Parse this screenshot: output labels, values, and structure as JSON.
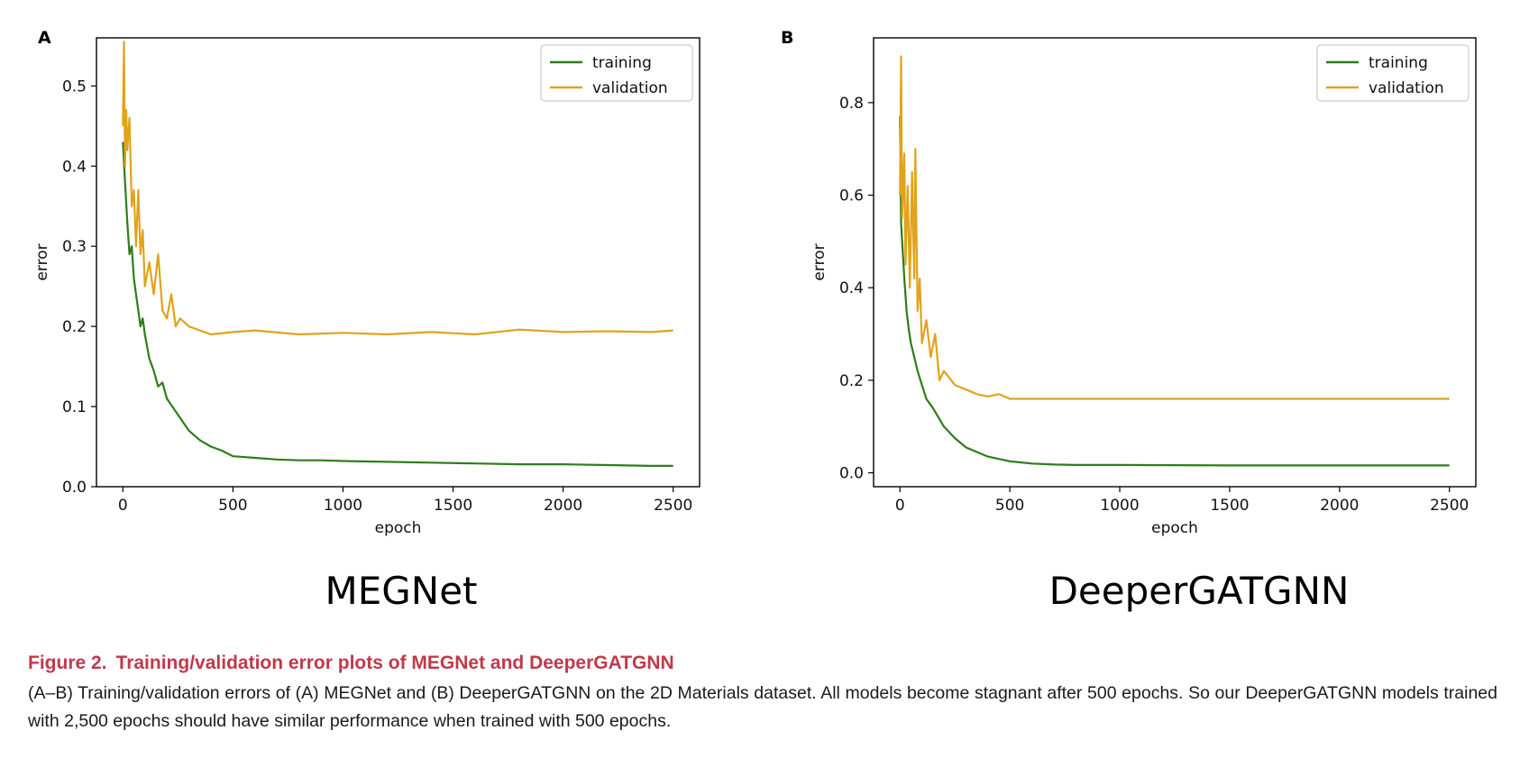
{
  "caption": {
    "figure_label": "Figure 2.",
    "title": "Training/validation error plots of MEGNet and DeeperGATGNN",
    "body": "(A–B) Training/validation errors of (A) MEGNet and (B) DeeperGATGNN on the 2D Materials dataset. All models become stagnant after 500 epochs. So our DeeperGATGNN models trained with 2,500 epochs should have similar performance when trained with 500 epochs."
  },
  "colors": {
    "training": "#2e7d1a",
    "validation": "#e0a31b"
  },
  "chart_data": [
    {
      "type": "line",
      "panel_label": "A",
      "model_name": "MEGNet",
      "xlabel": "epoch",
      "ylabel": "error",
      "xlim": [
        -120,
        2620
      ],
      "ylim": [
        0,
        0.56
      ],
      "xticks": [
        0,
        500,
        1000,
        1500,
        2000,
        2500
      ],
      "yticks": [
        0.0,
        0.1,
        0.2,
        0.3,
        0.4,
        0.5
      ],
      "grid": false,
      "legend": "top-right",
      "series": [
        {
          "name": "training",
          "color": "#2e7d1a",
          "x": [
            0,
            10,
            20,
            30,
            40,
            50,
            60,
            70,
            80,
            90,
            100,
            120,
            140,
            160,
            180,
            200,
            250,
            300,
            350,
            400,
            450,
            500,
            600,
            700,
            800,
            900,
            1000,
            1200,
            1400,
            1600,
            1800,
            2000,
            2200,
            2400,
            2500
          ],
          "y": [
            0.43,
            0.38,
            0.33,
            0.29,
            0.3,
            0.26,
            0.24,
            0.22,
            0.2,
            0.21,
            0.19,
            0.16,
            0.145,
            0.125,
            0.13,
            0.11,
            0.09,
            0.07,
            0.058,
            0.05,
            0.045,
            0.038,
            0.036,
            0.034,
            0.033,
            0.033,
            0.032,
            0.031,
            0.03,
            0.029,
            0.028,
            0.028,
            0.027,
            0.026,
            0.026
          ]
        },
        {
          "name": "validation",
          "color": "#e0a31b",
          "x": [
            0,
            5,
            10,
            15,
            20,
            30,
            40,
            50,
            60,
            70,
            80,
            90,
            100,
            120,
            140,
            160,
            180,
            200,
            220,
            240,
            260,
            300,
            350,
            400,
            500,
            600,
            800,
            1000,
            1200,
            1400,
            1600,
            1800,
            2000,
            2200,
            2400,
            2500
          ],
          "y": [
            0.45,
            0.555,
            0.4,
            0.47,
            0.42,
            0.46,
            0.35,
            0.37,
            0.3,
            0.37,
            0.29,
            0.32,
            0.25,
            0.28,
            0.24,
            0.29,
            0.22,
            0.21,
            0.24,
            0.2,
            0.21,
            0.2,
            0.195,
            0.19,
            0.193,
            0.195,
            0.19,
            0.192,
            0.19,
            0.193,
            0.19,
            0.196,
            0.193,
            0.194,
            0.193,
            0.195
          ]
        }
      ]
    },
    {
      "type": "line",
      "panel_label": "B",
      "model_name": "DeeperGATGNN",
      "xlabel": "epoch",
      "ylabel": "error",
      "xlim": [
        -120,
        2620
      ],
      "ylim": [
        -0.03,
        0.94
      ],
      "xticks": [
        0,
        500,
        1000,
        1500,
        2000,
        2500
      ],
      "yticks": [
        0.0,
        0.2,
        0.4,
        0.6,
        0.8
      ],
      "grid": false,
      "legend": "top-right",
      "series": [
        {
          "name": "training",
          "color": "#2e7d1a",
          "x": [
            0,
            5,
            10,
            20,
            30,
            40,
            50,
            60,
            80,
            100,
            120,
            150,
            200,
            250,
            300,
            350,
            400,
            450,
            500,
            600,
            700,
            800,
            1000,
            1500,
            2000,
            2500
          ],
          "y": [
            0.77,
            0.54,
            0.5,
            0.42,
            0.35,
            0.31,
            0.28,
            0.26,
            0.22,
            0.19,
            0.16,
            0.14,
            0.1,
            0.075,
            0.055,
            0.045,
            0.035,
            0.03,
            0.025,
            0.02,
            0.018,
            0.017,
            0.017,
            0.016,
            0.016,
            0.016
          ]
        },
        {
          "name": "validation",
          "color": "#e0a31b",
          "x": [
            0,
            5,
            10,
            20,
            25,
            35,
            45,
            55,
            65,
            70,
            80,
            90,
            100,
            120,
            140,
            160,
            180,
            200,
            250,
            300,
            350,
            400,
            450,
            500,
            700,
            1000,
            1500,
            2000,
            2500
          ],
          "y": [
            0.6,
            0.9,
            0.55,
            0.69,
            0.45,
            0.62,
            0.4,
            0.65,
            0.42,
            0.7,
            0.35,
            0.42,
            0.28,
            0.33,
            0.25,
            0.3,
            0.2,
            0.22,
            0.19,
            0.18,
            0.17,
            0.165,
            0.17,
            0.16,
            0.16,
            0.16,
            0.16,
            0.16,
            0.16
          ]
        }
      ]
    }
  ]
}
